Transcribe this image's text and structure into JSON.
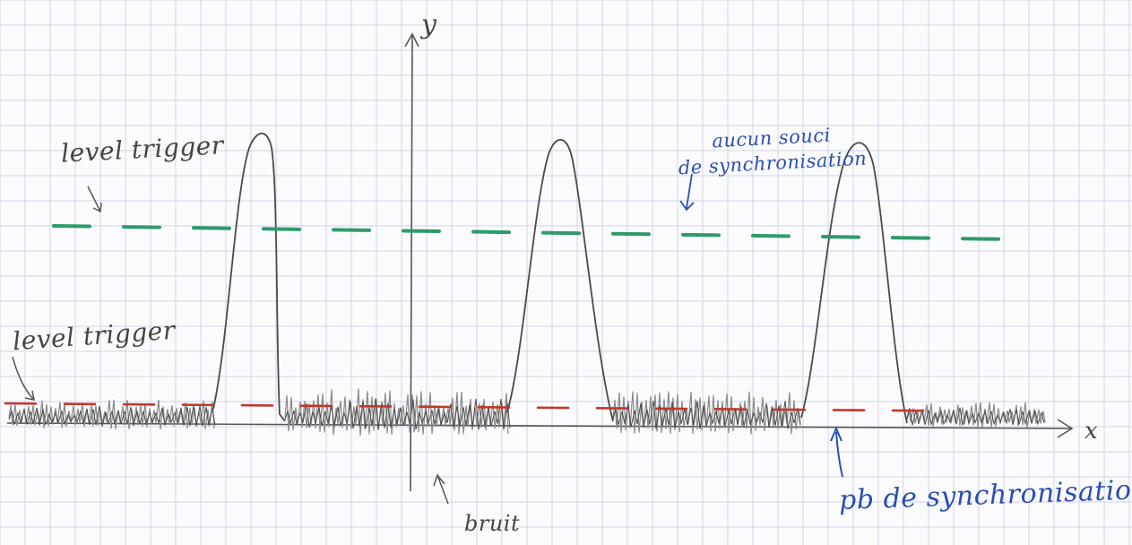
{
  "labels": {
    "green_trigger": "level trigger",
    "red_trigger": "level trigger",
    "y_axis": "y",
    "x_axis": "x",
    "noise": "bruit",
    "no_sync_issue_line1": "aucun souci",
    "no_sync_issue_line2": "de synchronisation",
    "sync_problem": "pb de synchronisation"
  },
  "colors": {
    "paper": "#fbfbfd",
    "grid": "#cfd6e6",
    "pencil": "#4a4a4a",
    "pencil_light": "#8a8a8a",
    "green_level": "#2f9a6a",
    "red_level": "#c0392b",
    "blue_ink": "#2b4fb0"
  },
  "icons": [
    "arrow-icon"
  ]
}
